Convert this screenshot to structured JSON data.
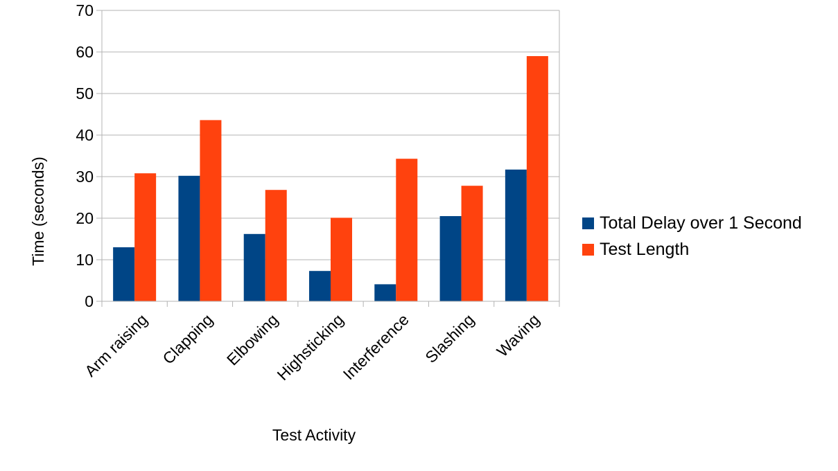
{
  "chart_data": {
    "type": "bar",
    "title": "",
    "xlabel": "Test Activity",
    "ylabel": "Time (seconds)",
    "ylim": [
      0,
      70
    ],
    "yticks": [
      0,
      10,
      20,
      30,
      40,
      50,
      60,
      70
    ],
    "grid": true,
    "legend_position": "right",
    "categories": [
      "Arm raising",
      "Clapping",
      "Elbowing",
      "Highsticking",
      "Interference",
      "Slashing",
      "Waving"
    ],
    "series": [
      {
        "name": "Total Delay over 1 Second",
        "color": "#004586",
        "values": [
          13.0,
          30.2,
          16.2,
          7.3,
          4.1,
          20.5,
          31.7
        ]
      },
      {
        "name": "Test Length",
        "color": "#FF420E",
        "values": [
          30.8,
          43.6,
          26.8,
          20.1,
          34.3,
          27.8,
          59.0
        ]
      }
    ]
  }
}
